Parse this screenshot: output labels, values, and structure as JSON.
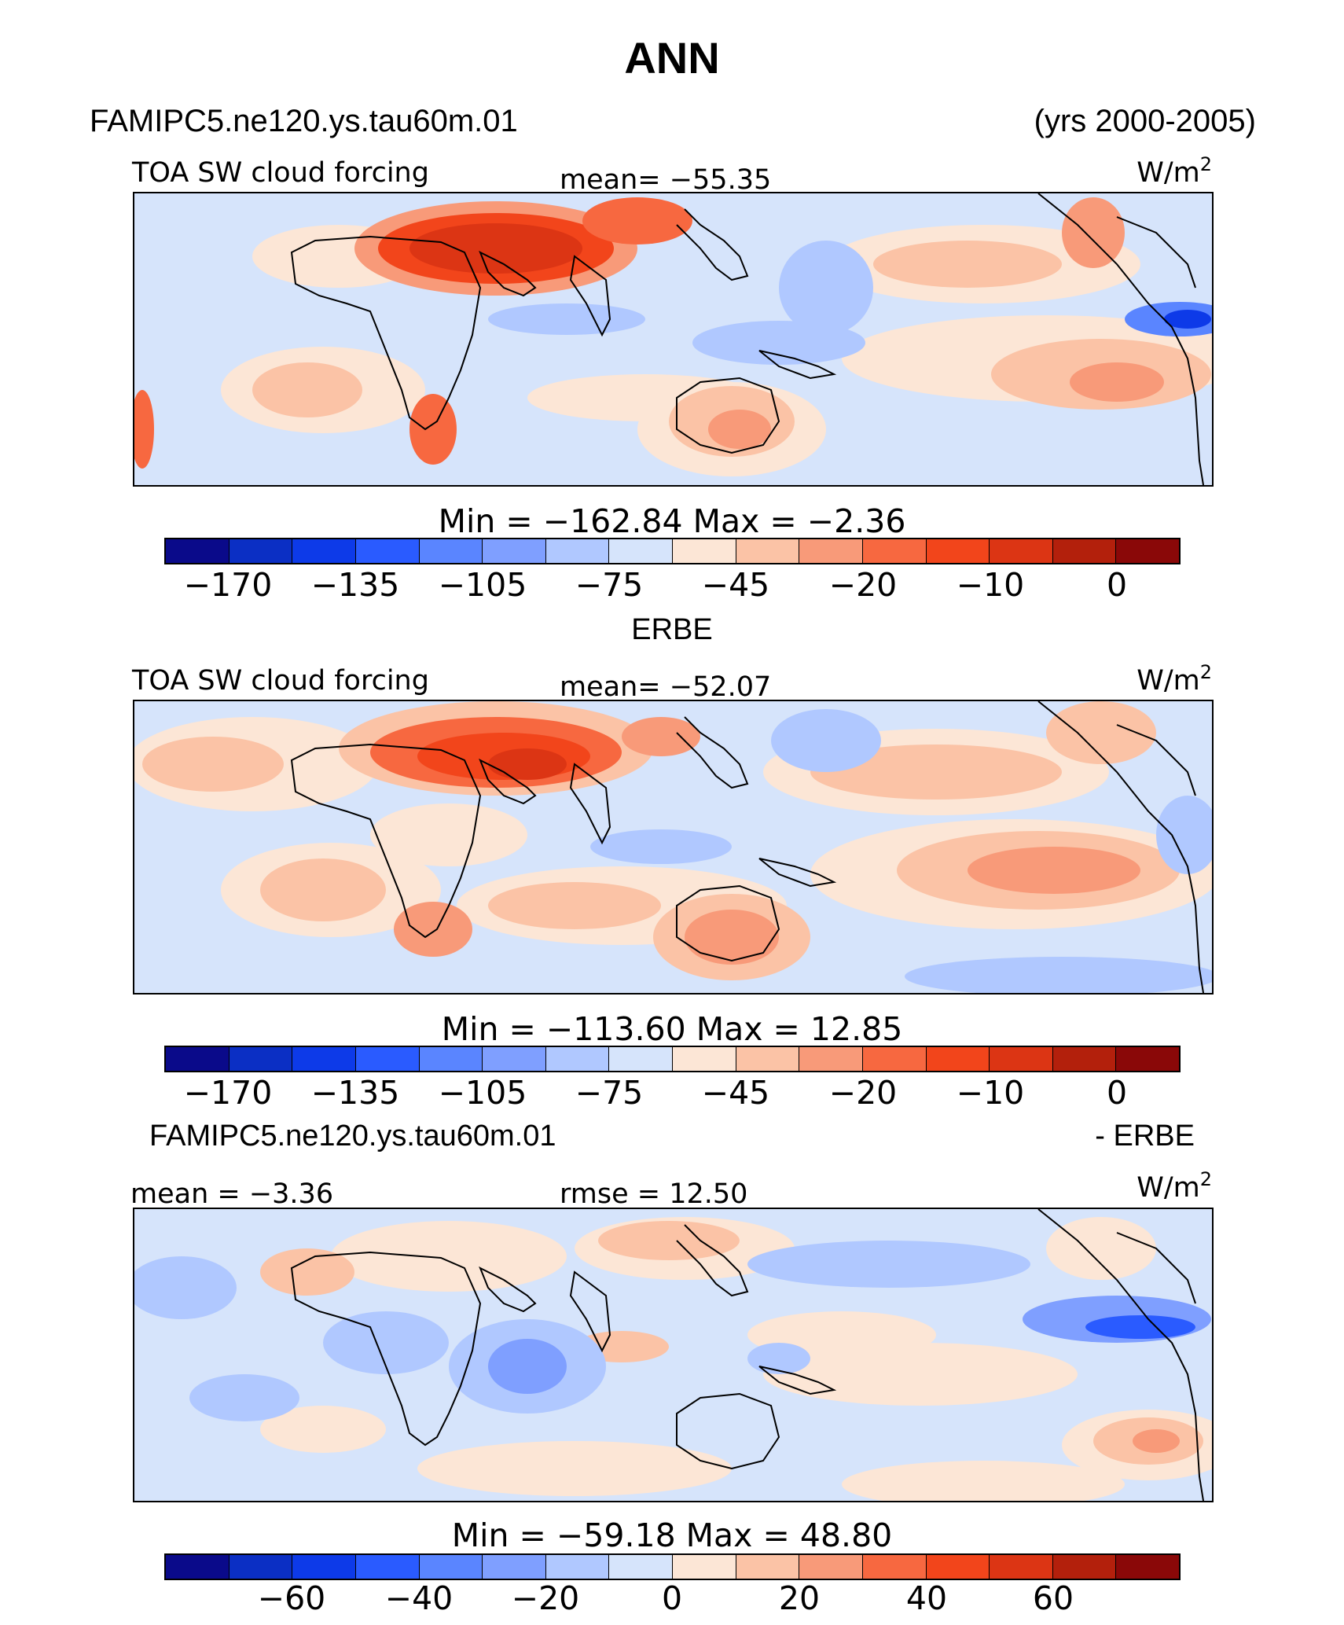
{
  "figure": {
    "title": "ANN"
  },
  "header": {
    "case_name": "FAMIPC5.ne120.ys.tau60m.01",
    "years": "(yrs 2000-2005)"
  },
  "palette": [
    "#0a0a8a",
    "#0b2fc4",
    "#0d3ae8",
    "#2a5bff",
    "#5a85ff",
    "#7f9fff",
    "#b0c8ff",
    "#d6e4fb",
    "#fce6d6",
    "#fbc3a6",
    "#f89a79",
    "#f76840",
    "#f2451b",
    "#dc3514",
    "#b3200c",
    "#8a0808"
  ],
  "panels": [
    {
      "label_left": "TOA SW cloud forcing",
      "label_center": "mean= −55.35",
      "units": "W/m",
      "units_sup": "2",
      "minmax": "Min  =  −162.84  Max  =   −2.36",
      "colorbar_ticks": [
        "−170",
        "−135",
        "−105",
        "−75",
        "−45",
        "−20",
        "−10",
        "0"
      ]
    },
    {
      "subtitle": "ERBE",
      "label_left": "TOA SW cloud forcing",
      "label_center": "mean= −52.07",
      "units": "W/m",
      "units_sup": "2",
      "minmax": "Min  =  −113.60  Max  =   12.85",
      "colorbar_ticks": [
        "−170",
        "−135",
        "−105",
        "−75",
        "−45",
        "−20",
        "−10",
        "0"
      ]
    },
    {
      "subtitle_left": "FAMIPC5.ne120.ys.tau60m.01",
      "subtitle_right": "- ERBE",
      "label_left": "mean  =   −3.36",
      "label_center": "rmse  =   12.50",
      "units": "W/m",
      "units_sup": "2",
      "minmax": "Min  =  −59.18  Max  =   48.80",
      "colorbar_ticks": [
        "−60",
        "−40",
        "−20",
        "0",
        "20",
        "40",
        "60"
      ]
    }
  ]
}
